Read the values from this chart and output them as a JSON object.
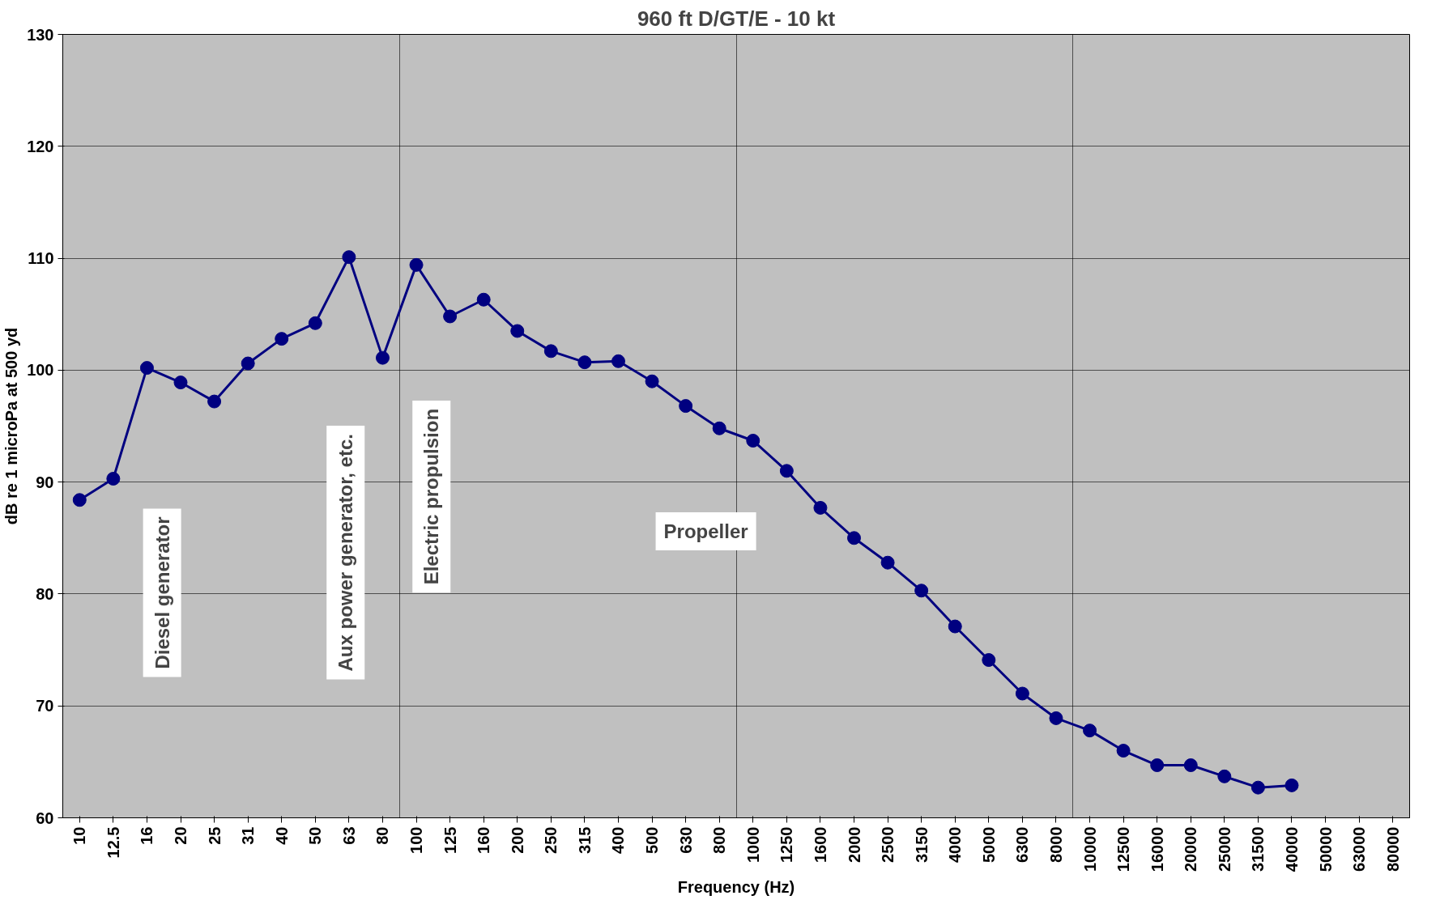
{
  "chart_data": {
    "type": "line",
    "title": "960 ft D/GT/E - 10 kt",
    "xlabel": "Frequency (Hz)",
    "ylabel": "dB re 1 microPa at 500 yd",
    "categories": [
      "10",
      "12.5",
      "16",
      "20",
      "25",
      "31",
      "40",
      "50",
      "63",
      "80",
      "100",
      "125",
      "160",
      "200",
      "250",
      "315",
      "400",
      "500",
      "630",
      "800",
      "1000",
      "1250",
      "1600",
      "2000",
      "2500",
      "3150",
      "4000",
      "5000",
      "6300",
      "8000",
      "10000",
      "12500",
      "16000",
      "20000",
      "25000",
      "31500",
      "40000",
      "50000",
      "63000",
      "80000"
    ],
    "series": [
      {
        "color": "#000080",
        "values": [
          88.4,
          90.3,
          100.2,
          98.9,
          97.2,
          100.6,
          102.8,
          104.2,
          110.1,
          101.1,
          109.4,
          104.8,
          106.3,
          103.5,
          101.7,
          100.7,
          100.8,
          99.0,
          96.8,
          94.8,
          93.7,
          91.0,
          87.7,
          85.0,
          82.8,
          80.3,
          77.1,
          74.1,
          71.1,
          68.9,
          67.8,
          66.0,
          64.7,
          64.7,
          63.7,
          62.7,
          62.9,
          null,
          null,
          null
        ]
      }
    ],
    "ylim": [
      60,
      130
    ],
    "yticks": [
      60,
      70,
      80,
      90,
      100,
      110,
      120,
      130
    ],
    "grid": true,
    "marker": "circle",
    "line_style": "solid",
    "annotations": [
      "Diesel generator",
      "Aux power generator, etc.",
      "Electric propulsion",
      "Propeller"
    ]
  }
}
